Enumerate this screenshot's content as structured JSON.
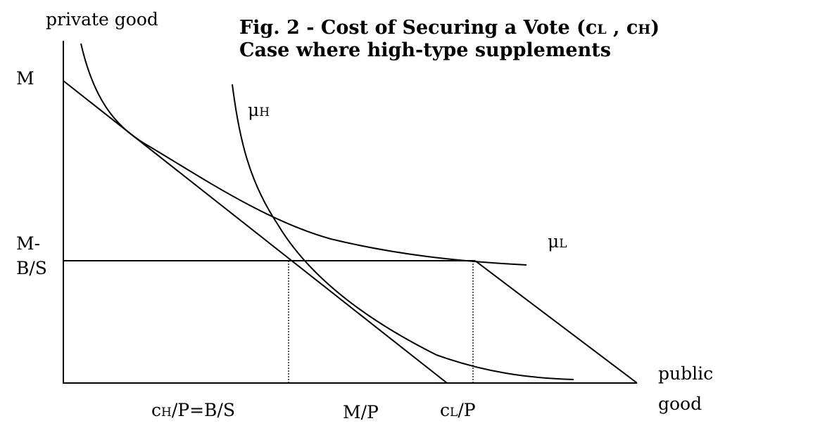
{
  "axes": {
    "y_label": "private good",
    "x_label": [
      "public",
      "good"
    ]
  },
  "title": {
    "line1": [
      "Fig. 2 - Cost of Securing a Vote (c",
      "L",
      " , c",
      "H",
      ")"
    ],
    "line2": "Case where high-type supplements"
  },
  "y_labels": {
    "m": "M",
    "m_bs": [
      "M-",
      "B/S"
    ]
  },
  "curves": {
    "mu_h": [
      "μ",
      "H"
    ],
    "mu_l": [
      "μ",
      "L"
    ]
  },
  "x_labels": {
    "ch": [
      "c",
      "H",
      "/P=B/S"
    ],
    "mp": "M/P",
    "cl": [
      "c",
      "L",
      "/P"
    ]
  }
}
